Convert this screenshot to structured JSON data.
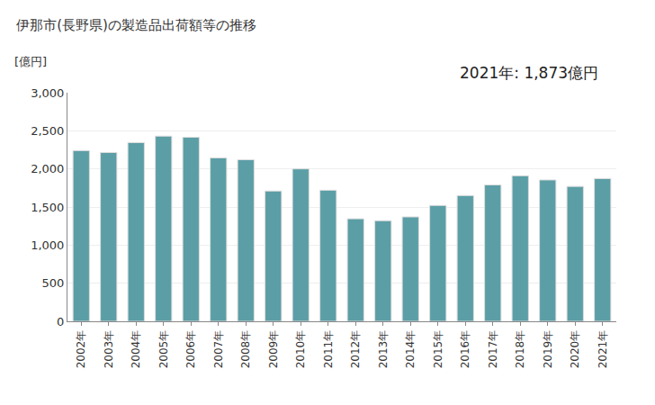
{
  "chart_data": {
    "type": "bar",
    "title": "伊那市(長野県)の製造品出荷額等の推移",
    "y_label": "[億円]",
    "annotations": [
      "2021年: 1,873億円"
    ],
    "categories": [
      "2002年",
      "2003年",
      "2004年",
      "2005年",
      "2006年",
      "2007年",
      "2008年",
      "2009年",
      "2010年",
      "2011年",
      "2012年",
      "2013年",
      "2014年",
      "2015年",
      "2016年",
      "2017年",
      "2018年",
      "2019年",
      "2020年",
      "2021年"
    ],
    "values": [
      2240,
      2215,
      2345,
      2430,
      2415,
      2145,
      2120,
      1710,
      2000,
      1720,
      1345,
      1320,
      1370,
      1520,
      1650,
      1790,
      1910,
      1855,
      1770,
      1873
    ],
    "color": "#5b9ea6",
    "ylim": [
      0,
      3000
    ],
    "yticks": [
      0,
      500,
      {
        "value": 1000,
        "label": "1,000"
      },
      {
        "value": 1500,
        "label": "1,500"
      },
      {
        "value": 2000,
        "label": "2,000"
      },
      {
        "value": 2500,
        "label": "2,500"
      },
      {
        "value": 3000,
        "label": "3,000"
      }
    ],
    "grid": true
  }
}
